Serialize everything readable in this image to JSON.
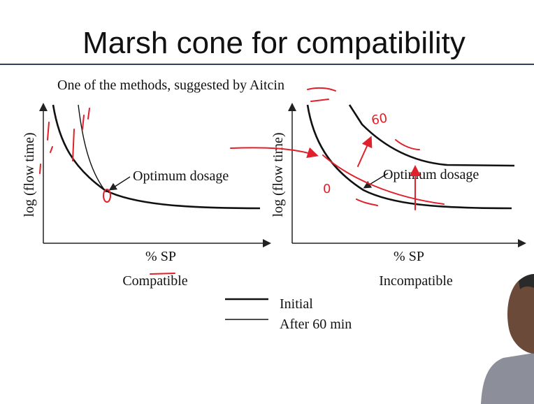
{
  "slide": {
    "title": "Marsh cone for compatibility",
    "subtitle": "One of the methods, suggested by Aitcin",
    "panels": [
      {
        "y_label": "log (flow time)",
        "annotation": "Optimum dosage",
        "x_label": "% SP",
        "caption": "Compatible"
      },
      {
        "y_label": "log (flow time)",
        "annotation": "Optimum dosage",
        "x_label": "% SP",
        "caption": "Incompatible"
      }
    ],
    "legend": [
      "Initial",
      "After 60 min"
    ],
    "handwriting": [
      "60",
      "0"
    ]
  }
}
